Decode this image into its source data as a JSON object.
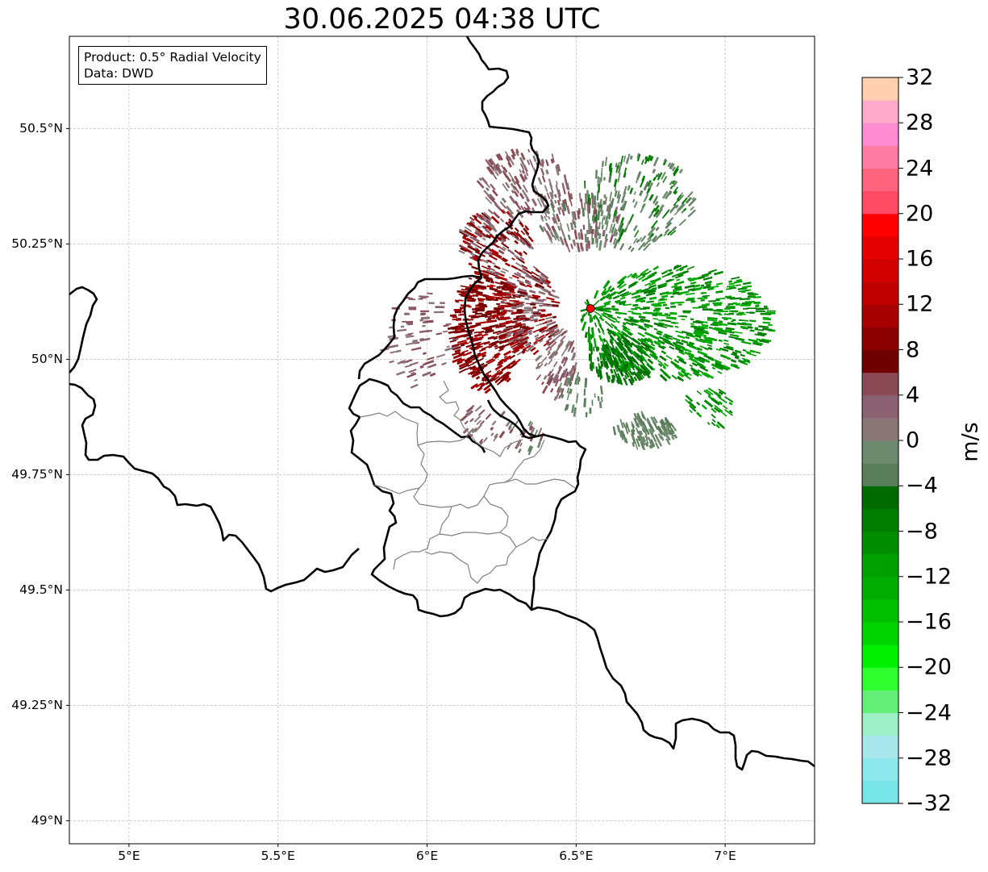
{
  "title": "30.06.2025 04:38 UTC",
  "info_box": {
    "product": "Product: 0.5° Radial Velocity",
    "source": "Data: DWD"
  },
  "map": {
    "lon_range": [
      4.8,
      7.3
    ],
    "lat_range": [
      48.95,
      50.7
    ],
    "lat_ticks": [
      {
        "value": 50.5,
        "label": "50.5°N"
      },
      {
        "value": 50.25,
        "label": "50.25°N"
      },
      {
        "value": 50.0,
        "label": "50°N"
      },
      {
        "value": 49.75,
        "label": "49.75°N"
      },
      {
        "value": 49.5,
        "label": "49.5°N"
      },
      {
        "value": 49.25,
        "label": "49.25°N"
      },
      {
        "value": 49.0,
        "label": "49°N"
      }
    ],
    "lon_ticks": [
      {
        "value": 5.0,
        "label": "5°E"
      },
      {
        "value": 5.5,
        "label": "5.5°E"
      },
      {
        "value": 6.0,
        "label": "6°E"
      },
      {
        "value": 6.5,
        "label": "6.5°E"
      },
      {
        "value": 7.0,
        "label": "7°E"
      }
    ],
    "radar_site": {
      "lon": 6.548,
      "lat": 50.11,
      "color": "#ff0000"
    },
    "border_color": "#000000",
    "district_color": "#808080",
    "grid_color": "#b0b0b0"
  },
  "colorbar": {
    "unit": "m/s",
    "min": -32,
    "max": 32,
    "tick_values": [
      -32,
      -28,
      -24,
      -20,
      -16,
      -12,
      -8,
      -4,
      0,
      4,
      8,
      12,
      16,
      20,
      24,
      28,
      32
    ],
    "tick_labels": [
      "−32",
      "−28",
      "−24",
      "−20",
      "−16",
      "−12",
      "−8",
      "−4",
      "0",
      "4",
      "8",
      "12",
      "16",
      "20",
      "24",
      "28",
      "32"
    ],
    "colors": [
      "#78e6e6",
      "#8ce8ea",
      "#a8e8ec",
      "#9ef0c8",
      "#66f07a",
      "#30ff30",
      "#00f000",
      "#00d400",
      "#00c000",
      "#00ac00",
      "#00a000",
      "#008c00",
      "#007c00",
      "#006c00",
      "#5a7e5a",
      "#6e8a6e",
      "#8a7878",
      "#8a6272",
      "#8a4a56",
      "#6e0000",
      "#8a0000",
      "#a80000",
      "#c00000",
      "#d20000",
      "#e40000",
      "#ff0000",
      "#ff4a64",
      "#ff647e",
      "#ff7ca4",
      "#ff8cd2",
      "#ffaac8",
      "#ffcfb0"
    ]
  }
}
